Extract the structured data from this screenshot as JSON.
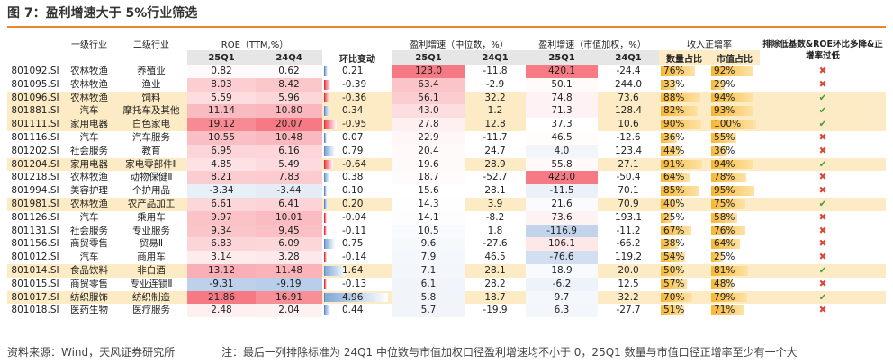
{
  "header": {
    "title": "图 7：盈利增速大于 5%行业筛选"
  },
  "table": {
    "group_headers": [
      "一级行业",
      "二级行业",
      "ROE（TTM,%）",
      "盈利增速（中位数，%）",
      "盈利增速（市值加权，%）",
      "收入正增率",
      "排除低基数&ROE环比多降&正增率过低"
    ],
    "sub_headers": [
      "25Q1",
      "24Q4",
      "环比变动",
      "25Q1",
      "24Q1",
      "25Q1",
      "24Q1",
      "数量占比",
      "市值占比"
    ],
    "rows": [
      [
        "801092.SI",
        "农林牧渔",
        "养殖业",
        "0.82",
        "0.62",
        "0.21",
        "123.0",
        "-11.8",
        "420.1",
        "-24.4",
        "76%",
        "92%",
        "✖"
      ],
      [
        "801095.SI",
        "农林牧渔",
        "渔业",
        "8.03",
        "8.42",
        "-0.39",
        "63.4",
        "-2.9",
        "50.1",
        "244.0",
        "33%",
        "29%",
        "✖"
      ],
      [
        "801096.SI",
        "农林牧渔",
        "饲料",
        "5.59",
        "5.96",
        "-0.36",
        "56.1",
        "32.2",
        "74.8",
        "73.6",
        "88%",
        "94%",
        "✔"
      ],
      [
        "801881.SI",
        "汽车",
        "摩托车及其他",
        "11.14",
        "10.80",
        "0.34",
        "43.0",
        "1.2",
        "71.3",
        "128.4",
        "82%",
        "93%",
        "✔"
      ],
      [
        "801111.SI",
        "家用电器",
        "白色家电",
        "19.12",
        "20.07",
        "-0.95",
        "27.8",
        "12.8",
        "37.3",
        "10.6",
        "90%",
        "100%",
        "✔"
      ],
      [
        "801116.SI",
        "汽车",
        "汽车服务",
        "10.55",
        "10.48",
        "0.07",
        "22.9",
        "-11.7",
        "46.5",
        "-12.6",
        "36%",
        "55%",
        "✖"
      ],
      [
        "801202.SI",
        "社会服务",
        "教育",
        "6.95",
        "6.16",
        "0.79",
        "20.4",
        "24.7",
        "4.0",
        "123.4",
        "44%",
        "36%",
        "✖"
      ],
      [
        "801204.SI",
        "家用电器",
        "家电零部件Ⅱ",
        "4.85",
        "5.49",
        "-0.64",
        "19.6",
        "28.9",
        "55.8",
        "27.1",
        "91%",
        "94%",
        "✔"
      ],
      [
        "801218.SI",
        "农林牧渔",
        "动物保健Ⅱ",
        "8.21",
        "7.83",
        "0.38",
        "18.7",
        "-52.7",
        "423.0",
        "-50.4",
        "64%",
        "78%",
        "✖"
      ],
      [
        "801994.SI",
        "美容护理",
        "个护用品",
        "-3.34",
        "-3.44",
        "0.10",
        "15.6",
        "28.1",
        "-11.5",
        "70.1",
        "85%",
        "95%",
        "✖"
      ],
      [
        "801981.SI",
        "农林牧渔",
        "农产品加工",
        "6.61",
        "6.41",
        "0.20",
        "14.3",
        "3.9",
        "21.6",
        "70.9",
        "40%",
        "75%",
        "✔"
      ],
      [
        "801126.SI",
        "汽车",
        "乘用车",
        "9.97",
        "10.01",
        "-0.04",
        "14.1",
        "-8.2",
        "73.6",
        "193.1",
        "25%",
        "58%",
        "✖"
      ],
      [
        "801131.SI",
        "社会服务",
        "专业服务",
        "9.34",
        "9.45",
        "-0.11",
        "10.5",
        "1.8",
        "-116.9",
        "-11.2",
        "67%",
        "76%",
        "✖"
      ],
      [
        "801156.SI",
        "商贸零售",
        "贸易Ⅱ",
        "6.83",
        "6.09",
        "0.75",
        "9.6",
        "-27.6",
        "106.1",
        "-66.2",
        "38%",
        "64%",
        "✖"
      ],
      [
        "801012.SI",
        "汽车",
        "商用车",
        "3.14",
        "3.28",
        "-0.14",
        "7.9",
        "46.5",
        "-76.6",
        "119.2",
        "54%",
        "25%",
        "✖"
      ],
      [
        "801014.SI",
        "食品饮料",
        "非白酒",
        "13.12",
        "11.48",
        "1.64",
        "7.1",
        "28.1",
        "18.9",
        "20.0",
        "50%",
        "81%",
        "✔"
      ],
      [
        "801015.SI",
        "商贸零售",
        "专业连锁Ⅱ",
        "-9.31",
        "-9.19",
        "-0.13",
        "6.1",
        "28.2",
        "-6.2",
        "12.5",
        "57%",
        "48%",
        "✖"
      ],
      [
        "801017.SI",
        "纺织服饰",
        "纺织制造",
        "21.86",
        "16.91",
        "4.96",
        "5.8",
        "18.7",
        "9.7",
        "32.2",
        "70%",
        "79%",
        "✔"
      ],
      [
        "801018.SI",
        "医药生物",
        "医疗服务",
        "2.48",
        "2.04",
        "0.44",
        "5.7",
        "-19.9",
        "6.3",
        "-27.7",
        "51%",
        "71%",
        "✖"
      ]
    ]
  },
  "footer": {
    "source": "资料来源：Wind，天风证券研究所",
    "note": "注：最后一列排除标准为 24Q1 中位数与市值加权口径盈利增速均不小于 0，25Q1 数量与市值口径正增率至少有一个大"
  }
}
